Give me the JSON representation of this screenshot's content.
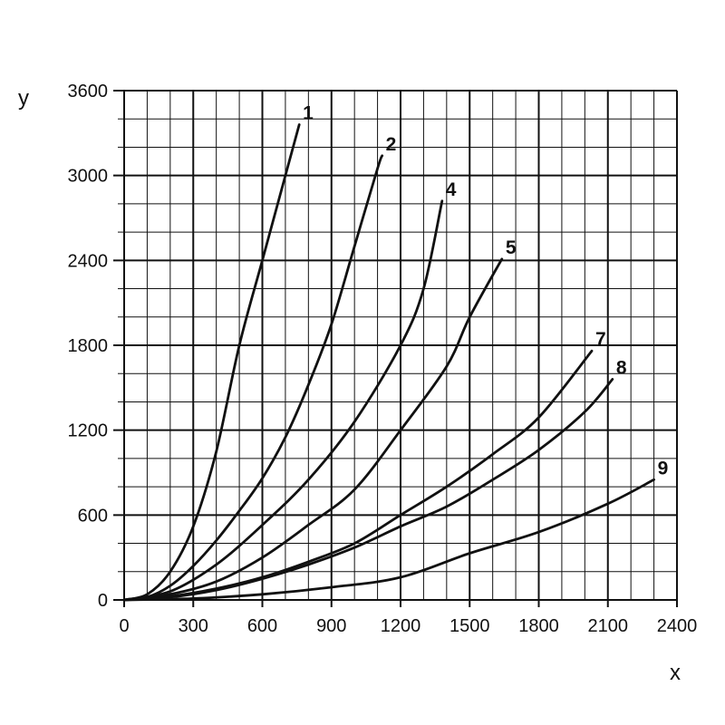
{
  "chart_data": {
    "type": "line",
    "title": "",
    "xlabel": "x",
    "ylabel": "y",
    "xlim": [
      0,
      2400
    ],
    "ylim": [
      0,
      3600
    ],
    "x_ticks": [
      0,
      300,
      600,
      900,
      1200,
      1500,
      1800,
      2100,
      2400
    ],
    "y_ticks": [
      0,
      600,
      1200,
      1800,
      2400,
      3000,
      3600
    ],
    "x_tick_labels": [
      "0",
      "300",
      "600",
      "900",
      "1200",
      "1500",
      "1800",
      "2100",
      "2400"
    ],
    "y_tick_labels": [
      "0",
      "600",
      "1200",
      "1800",
      "2400",
      "3000",
      "3600"
    ],
    "x_minor_step": 100,
    "y_minor_step": 200,
    "grid": true,
    "series": [
      {
        "label": "1",
        "x": [
          0,
          100,
          200,
          300,
          400,
          500,
          600,
          700,
          760
        ],
        "y": [
          0,
          40,
          200,
          520,
          1050,
          1800,
          2400,
          3000,
          3360
        ]
      },
      {
        "label": "2",
        "x": [
          0,
          100,
          200,
          300,
          400,
          500,
          600,
          700,
          800,
          900,
          1000,
          1100,
          1120
        ],
        "y": [
          0,
          20,
          100,
          240,
          420,
          630,
          860,
          1150,
          1520,
          1950,
          2500,
          3050,
          3140
        ]
      },
      {
        "label": "4",
        "x": [
          0,
          200,
          400,
          600,
          800,
          1000,
          1200,
          1300,
          1380
        ],
        "y": [
          0,
          60,
          250,
          530,
          850,
          1260,
          1800,
          2200,
          2820
        ]
      },
      {
        "label": "5",
        "x": [
          0,
          200,
          400,
          600,
          800,
          1000,
          1200,
          1400,
          1500,
          1640
        ],
        "y": [
          0,
          40,
          130,
          300,
          530,
          780,
          1200,
          1650,
          2000,
          2410
        ]
      },
      {
        "label": "7",
        "x": [
          0,
          200,
          400,
          600,
          800,
          1000,
          1200,
          1400,
          1600,
          1800,
          2030
        ],
        "y": [
          0,
          25,
          80,
          160,
          270,
          400,
          600,
          800,
          1030,
          1290,
          1760
        ]
      },
      {
        "label": "8",
        "x": [
          0,
          200,
          400,
          600,
          800,
          1000,
          1200,
          1400,
          1600,
          1800,
          2000,
          2120
        ],
        "y": [
          0,
          20,
          70,
          150,
          250,
          370,
          520,
          660,
          850,
          1060,
          1330,
          1560
        ]
      },
      {
        "label": "9",
        "x": [
          0,
          300,
          600,
          900,
          1200,
          1500,
          1800,
          2100,
          2300
        ],
        "y": [
          0,
          10,
          40,
          90,
          160,
          330,
          480,
          680,
          850
        ]
      }
    ]
  }
}
